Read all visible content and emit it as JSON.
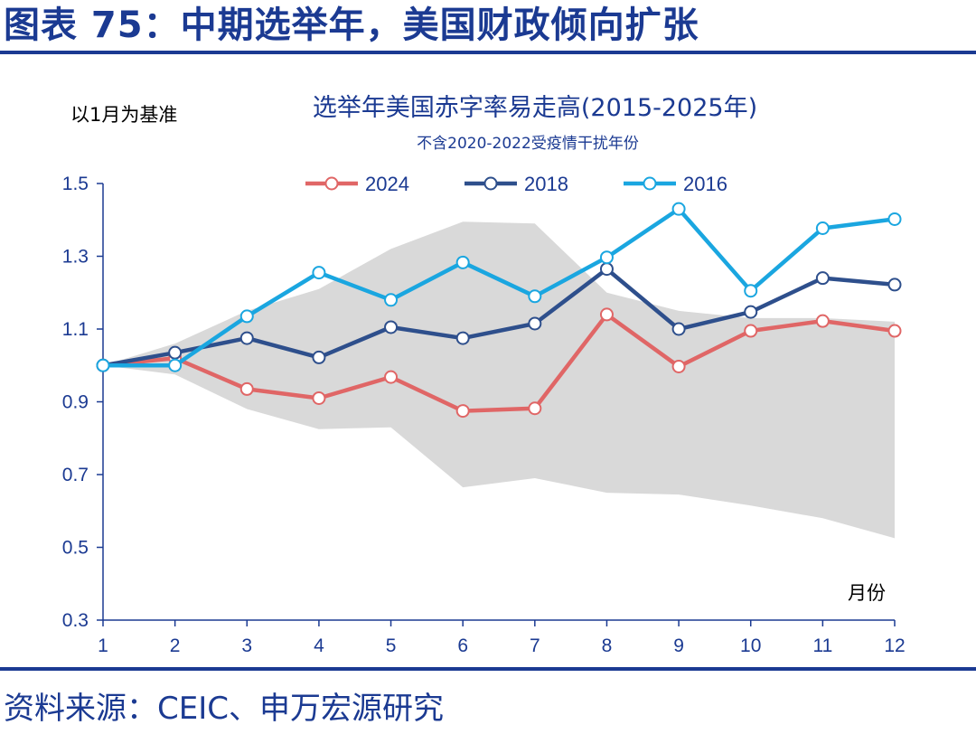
{
  "header": {
    "title": "图表 75：中期选举年，美国财政倾向扩张"
  },
  "footer": {
    "source": "资料来源：CEIC、申万宏源研究"
  },
  "colors": {
    "brand": "#1b3a92",
    "band": "#d9d9d9"
  },
  "chart_data": {
    "type": "line",
    "title": "选举年美国赤字率易走高(2015-2025年)",
    "subtitle": "不含2020-2022受疫情干扰年份",
    "ylabel": "以1月为基准",
    "xlabel": "月份",
    "x": [
      1,
      2,
      3,
      4,
      5,
      6,
      7,
      8,
      9,
      10,
      11,
      12
    ],
    "ylim": [
      0.3,
      1.5
    ],
    "yticks": [
      "0.3",
      "0.5",
      "0.7",
      "0.9",
      "1.1",
      "1.3",
      "1.5"
    ],
    "legend_position": "top",
    "band": {
      "upper": [
        1.0,
        1.06,
        1.15,
        1.21,
        1.32,
        1.395,
        1.39,
        1.2,
        1.15,
        1.13,
        1.13,
        1.12
      ],
      "lower": [
        1.0,
        0.975,
        0.88,
        0.825,
        0.83,
        0.665,
        0.69,
        0.65,
        0.645,
        0.615,
        0.58,
        0.525
      ],
      "color": "#d9d9d9"
    },
    "series": [
      {
        "name": "2024",
        "color": "#e06666",
        "values": [
          1.0,
          1.02,
          0.935,
          0.91,
          0.968,
          0.875,
          0.882,
          1.14,
          0.997,
          1.095,
          1.122,
          1.095
        ]
      },
      {
        "name": "2018",
        "color": "#2e4f8c",
        "values": [
          1.0,
          1.035,
          1.075,
          1.022,
          1.105,
          1.075,
          1.115,
          1.265,
          1.1,
          1.147,
          1.24,
          1.222
        ]
      },
      {
        "name": "2016",
        "color": "#1aa6e0",
        "values": [
          1.0,
          1.0,
          1.135,
          1.255,
          1.18,
          1.283,
          1.19,
          1.297,
          1.43,
          1.205,
          1.377,
          1.402
        ]
      }
    ]
  }
}
